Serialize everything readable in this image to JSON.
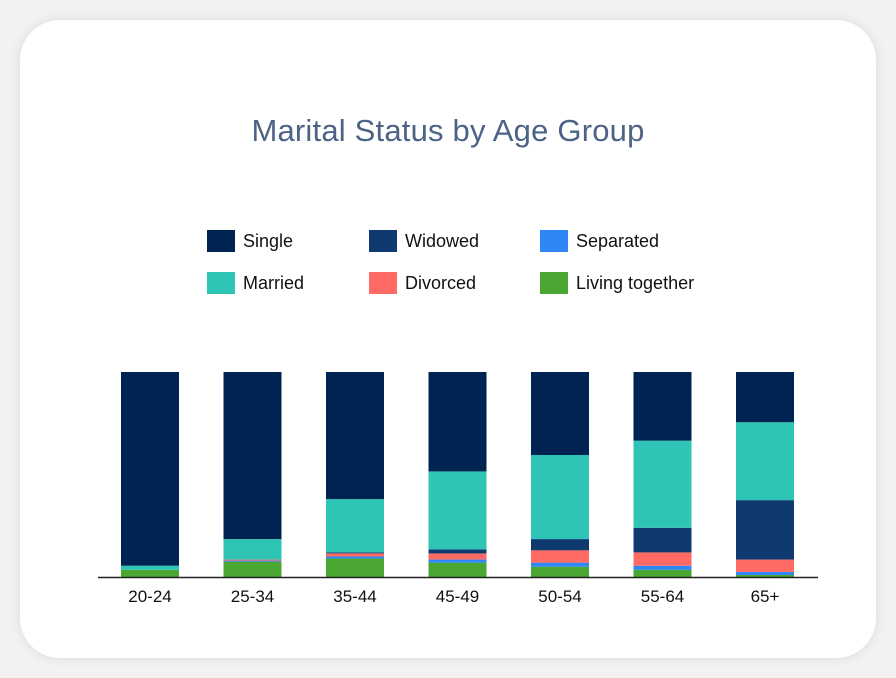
{
  "chart_data": {
    "type": "bar",
    "stacked": true,
    "normalized": true,
    "title": "Marital Status by Age Group",
    "xlabel": "",
    "ylabel": "",
    "ylim": [
      0,
      100
    ],
    "grid": false,
    "legend_position": "top",
    "categories": [
      "20-24",
      "25-34",
      "35-44",
      "45-49",
      "50-54",
      "55-64",
      "65+"
    ],
    "series": [
      {
        "name": "Living together",
        "color": "#4aa832",
        "values": [
          3.5,
          7.5,
          9.0,
          7.0,
          5.0,
          3.5,
          1.0
        ]
      },
      {
        "name": "Separated",
        "color": "#2f86f6",
        "values": [
          0.0,
          0.5,
          1.0,
          1.5,
          2.0,
          2.0,
          1.5
        ]
      },
      {
        "name": "Divorced",
        "color": "#ff6b64",
        "values": [
          0.0,
          0.5,
          1.5,
          3.0,
          6.0,
          6.5,
          6.0
        ]
      },
      {
        "name": "Widowed",
        "color": "#0f3a70",
        "values": [
          0.0,
          0.0,
          0.5,
          2.0,
          5.5,
          12.0,
          29.0
        ]
      },
      {
        "name": "Married",
        "color": "#2ec5b7",
        "values": [
          2.0,
          10.0,
          26.0,
          38.0,
          41.0,
          42.5,
          38.0
        ]
      },
      {
        "name": "Single",
        "color": "#002452",
        "values": [
          94.5,
          81.5,
          62.0,
          48.5,
          40.5,
          33.5,
          24.5
        ]
      }
    ]
  },
  "legend": [
    {
      "label": "Single",
      "color": "#002452"
    },
    {
      "label": "Widowed",
      "color": "#0f3a70"
    },
    {
      "label": "Separated",
      "color": "#2f86f6"
    },
    {
      "label": "Married",
      "color": "#2ec5b7"
    },
    {
      "label": "Divorced",
      "color": "#ff6b64"
    },
    {
      "label": "Living together",
      "color": "#4aa832"
    }
  ]
}
